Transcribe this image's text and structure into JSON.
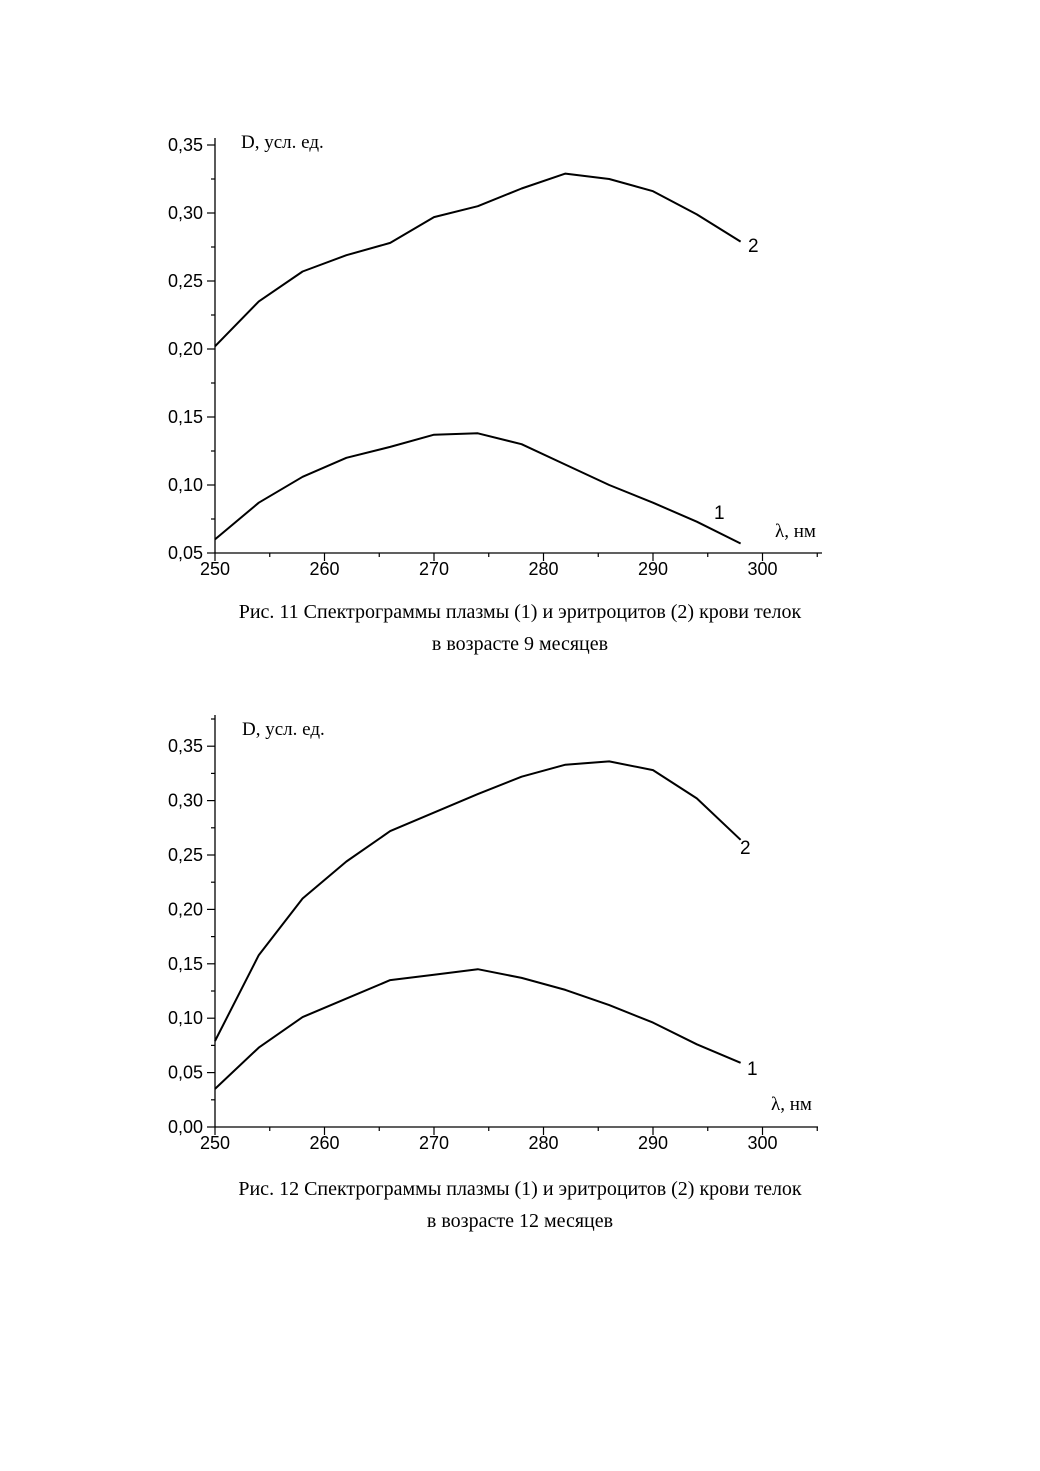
{
  "chart_data": [
    {
      "type": "line",
      "title": "",
      "ylabel": "D, усл. ед.",
      "xlabel": "λ, нм",
      "xlim": [
        250,
        305
      ],
      "ylim": [
        0.05,
        0.35
      ],
      "xticks": [
        "250",
        "260",
        "270",
        "280",
        "290",
        "300"
      ],
      "yticks": [
        "0,05",
        "0,10",
        "0,15",
        "0,20",
        "0,25",
        "0,30",
        "0,35"
      ],
      "series": [
        {
          "name": "1",
          "x": [
            250,
            254,
            258,
            262,
            266,
            270,
            274,
            278,
            282,
            286,
            290,
            294,
            298
          ],
          "y": [
            0.06,
            0.087,
            0.106,
            0.12,
            0.128,
            0.137,
            0.138,
            0.13,
            0.115,
            0.1,
            0.087,
            0.073,
            0.057
          ]
        },
        {
          "name": "2",
          "x": [
            250,
            254,
            258,
            262,
            266,
            270,
            274,
            278,
            282,
            286,
            290,
            294,
            298
          ],
          "y": [
            0.202,
            0.235,
            0.257,
            0.269,
            0.278,
            0.297,
            0.305,
            0.318,
            0.329,
            0.325,
            0.316,
            0.299,
            0.279
          ]
        }
      ],
      "caption": [
        "Рис. 11 Спектрограммы плазмы (1) и эритроцитов (2) крови телок",
        "в возрасте 9 месяцев"
      ]
    },
    {
      "type": "line",
      "title": "",
      "ylabel": "D, усл. ед.",
      "xlabel": "λ, нм",
      "xlim": [
        250,
        305
      ],
      "ylim": [
        0.0,
        0.375
      ],
      "xticks": [
        "250",
        "260",
        "270",
        "280",
        "290",
        "300"
      ],
      "yticks": [
        "0,00",
        "0,05",
        "0,10",
        "0,15",
        "0,20",
        "0,25",
        "0,30",
        "0,35"
      ],
      "series": [
        {
          "name": "1",
          "x": [
            250,
            254,
            258,
            262,
            266,
            270,
            274,
            278,
            282,
            286,
            290,
            294,
            298
          ],
          "y": [
            0.035,
            0.073,
            0.101,
            0.118,
            0.135,
            0.14,
            0.145,
            0.137,
            0.126,
            0.112,
            0.096,
            0.076,
            0.059
          ]
        },
        {
          "name": "2",
          "x": [
            250,
            254,
            258,
            262,
            266,
            270,
            274,
            278,
            282,
            286,
            290,
            294,
            298
          ],
          "y": [
            0.079,
            0.158,
            0.21,
            0.244,
            0.272,
            0.289,
            0.306,
            0.322,
            0.333,
            0.336,
            0.328,
            0.302,
            0.264
          ]
        }
      ],
      "caption": [
        "Рис. 12 Спектрограммы плазмы (1) и эритроцитов (2) крови телок",
        "в возрасте 12 месяцев"
      ]
    }
  ]
}
